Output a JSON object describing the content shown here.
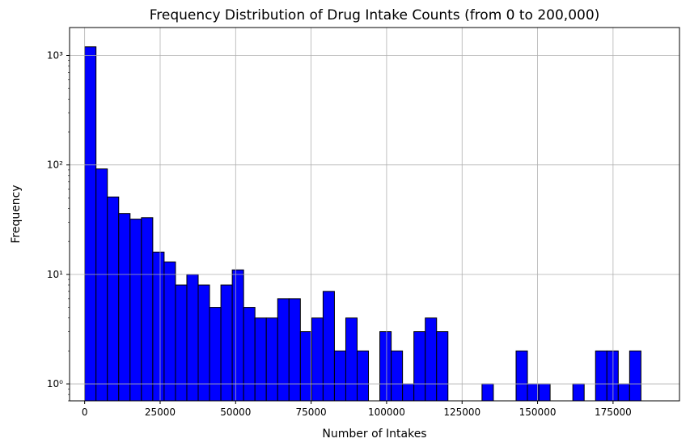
{
  "chart_data": {
    "type": "bar",
    "title": "Frequency Distribution of Drug Intake Counts (from 0 to 200,000)",
    "xlabel": "Number of Intakes",
    "ylabel": "Frequency",
    "xlim": [
      -5000,
      197000
    ],
    "ylim": [
      0.7,
      1800
    ],
    "yscale": "log",
    "grid": true,
    "x_ticks": [
      0,
      25000,
      50000,
      75000,
      100000,
      125000,
      150000,
      175000
    ],
    "x_tick_labels": [
      "0",
      "25000",
      "50000",
      "75000",
      "100000",
      "125000",
      "150000",
      "175000"
    ],
    "y_ticks": [
      1,
      10,
      100,
      1000
    ],
    "y_tick_labels": [
      "10⁰",
      "10¹",
      "10²",
      "10³"
    ],
    "bar_color": "#0000ff",
    "edge_color": "#000000",
    "bin_start": 0,
    "bin_width": 3760,
    "values": [
      1200,
      92,
      51,
      36,
      32,
      33,
      16,
      13,
      8,
      10,
      8,
      5,
      8,
      11,
      5,
      4,
      4,
      6,
      6,
      3,
      4,
      7,
      2,
      4,
      2,
      0,
      3,
      2,
      1,
      3,
      4,
      3,
      0,
      0,
      0,
      1,
      0,
      0,
      2,
      1,
      1,
      0,
      0,
      1,
      0,
      2,
      2,
      1,
      2
    ]
  }
}
